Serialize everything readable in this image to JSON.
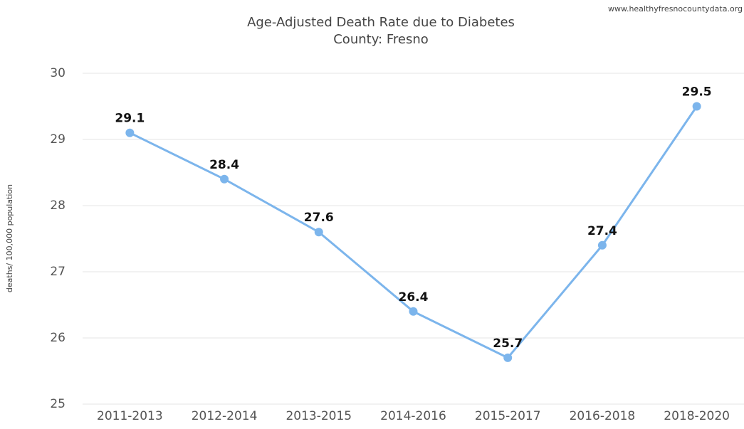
{
  "chart_data": {
    "type": "line",
    "title": "Age-Adjusted Death Rate due to Diabetes",
    "subtitle": "County: Fresno",
    "credit": "www.healthyfresnocountydata.org",
    "y_label": "deaths/ 100,000 population",
    "categories": [
      "2011-2013",
      "2012-2014",
      "2013-2015",
      "2014-2016",
      "2015-2017",
      "2016-2018",
      "2018-2020"
    ],
    "series": [
      {
        "name": "Fresno",
        "color": "#7cb5ec",
        "values": [
          29.1,
          28.4,
          27.6,
          26.4,
          25.7,
          27.4,
          29.5
        ]
      }
    ],
    "ylim": [
      25,
      30
    ],
    "yticks": [
      25,
      26,
      27,
      28,
      29,
      30
    ],
    "grid": true
  }
}
